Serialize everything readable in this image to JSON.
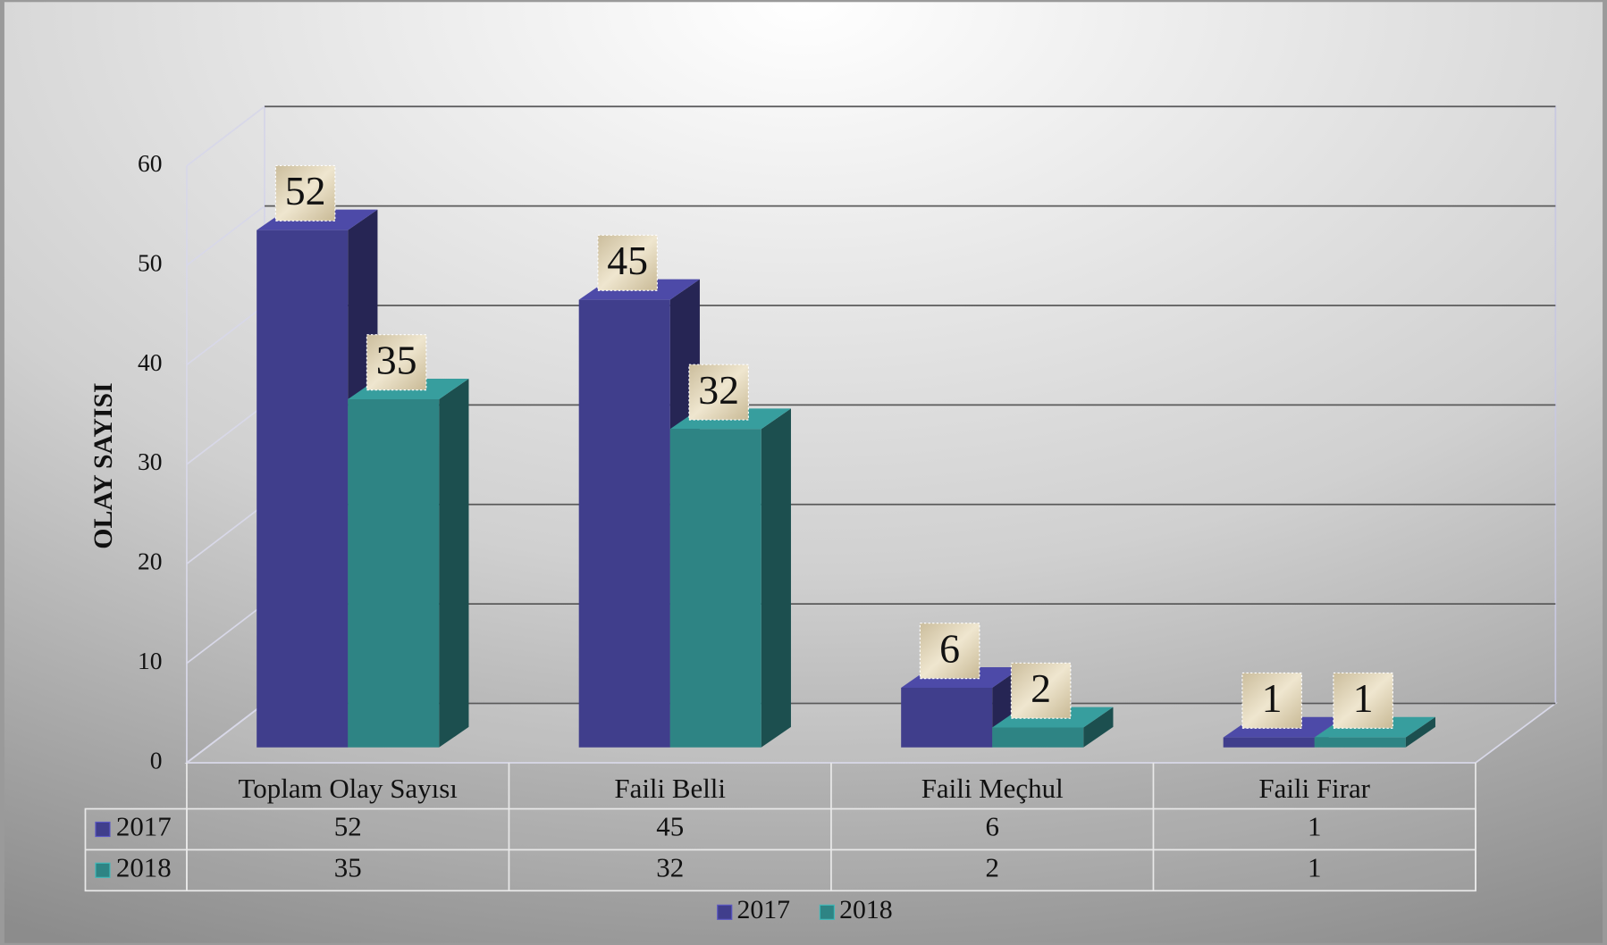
{
  "chart_data": {
    "type": "bar3d",
    "y_label": "OLAY SAYISI",
    "categories": [
      "Toplam Olay Sayısı",
      "Faili Belli",
      "Faili Meçhul",
      "Faili Firar"
    ],
    "series": [
      {
        "name": "2017",
        "color": "#403e8c",
        "values": [
          52,
          45,
          6,
          1
        ]
      },
      {
        "name": "2018",
        "color": "#2e8484",
        "values": [
          35,
          32,
          2,
          1
        ]
      }
    ],
    "ylim": [
      0,
      60
    ],
    "yticks": [
      0,
      10,
      20,
      30,
      40,
      50,
      60
    ],
    "grid": true,
    "data_table": true,
    "legend": "bottom"
  }
}
